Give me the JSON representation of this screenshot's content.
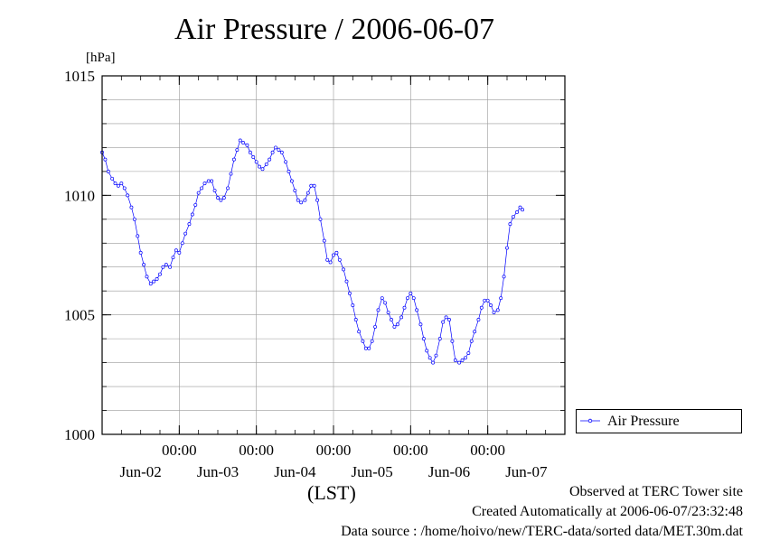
{
  "chart_data": {
    "type": "line",
    "title": "Air Pressure / 2006-06-07",
    "ylabel": "[hPa]",
    "xlabel": "(LST)",
    "ylim": [
      1000,
      1015
    ],
    "yticks": [
      "1000",
      "1005",
      "1010",
      "1015"
    ],
    "xlim_days": [
      0,
      6
    ],
    "xticks": [
      {
        "time": "00:00",
        "date": "Jun-02"
      },
      {
        "time": "00:00",
        "date": "Jun-03"
      },
      {
        "time": "00:00",
        "date": "Jun-04"
      },
      {
        "time": "00:00",
        "date": "Jun-05"
      },
      {
        "time": "00:00",
        "date": "Jun-06"
      },
      {
        "time": "",
        "date": "Jun-07"
      }
    ],
    "grid": true,
    "legend_position": "lower-right outside",
    "series": [
      {
        "name": "Air Pressure",
        "color": "#0000ff",
        "points": [
          [
            0.0,
            1011.8
          ],
          [
            0.04,
            1011.5
          ],
          [
            0.08,
            1011.0
          ],
          [
            0.13,
            1010.7
          ],
          [
            0.17,
            1010.5
          ],
          [
            0.21,
            1010.4
          ],
          [
            0.25,
            1010.5
          ],
          [
            0.29,
            1010.3
          ],
          [
            0.33,
            1010.0
          ],
          [
            0.38,
            1009.5
          ],
          [
            0.42,
            1009.0
          ],
          [
            0.46,
            1008.3
          ],
          [
            0.5,
            1007.6
          ],
          [
            0.54,
            1007.1
          ],
          [
            0.58,
            1006.6
          ],
          [
            0.63,
            1006.3
          ],
          [
            0.67,
            1006.4
          ],
          [
            0.71,
            1006.5
          ],
          [
            0.75,
            1006.7
          ],
          [
            0.79,
            1007.0
          ],
          [
            0.83,
            1007.1
          ],
          [
            0.88,
            1007.0
          ],
          [
            0.92,
            1007.4
          ],
          [
            0.96,
            1007.7
          ],
          [
            1.0,
            1007.6
          ],
          [
            1.04,
            1008.0
          ],
          [
            1.08,
            1008.4
          ],
          [
            1.13,
            1008.8
          ],
          [
            1.17,
            1009.2
          ],
          [
            1.21,
            1009.6
          ],
          [
            1.25,
            1010.1
          ],
          [
            1.29,
            1010.3
          ],
          [
            1.33,
            1010.5
          ],
          [
            1.38,
            1010.6
          ],
          [
            1.42,
            1010.6
          ],
          [
            1.46,
            1010.2
          ],
          [
            1.5,
            1009.9
          ],
          [
            1.54,
            1009.8
          ],
          [
            1.58,
            1009.9
          ],
          [
            1.63,
            1010.3
          ],
          [
            1.67,
            1010.9
          ],
          [
            1.71,
            1011.5
          ],
          [
            1.75,
            1011.9
          ],
          [
            1.79,
            1012.3
          ],
          [
            1.83,
            1012.2
          ],
          [
            1.88,
            1012.1
          ],
          [
            1.92,
            1011.8
          ],
          [
            1.96,
            1011.6
          ],
          [
            2.0,
            1011.4
          ],
          [
            2.04,
            1011.2
          ],
          [
            2.08,
            1011.1
          ],
          [
            2.13,
            1011.3
          ],
          [
            2.17,
            1011.5
          ],
          [
            2.21,
            1011.8
          ],
          [
            2.25,
            1012.0
          ],
          [
            2.29,
            1011.9
          ],
          [
            2.33,
            1011.8
          ],
          [
            2.38,
            1011.4
          ],
          [
            2.42,
            1011.0
          ],
          [
            2.46,
            1010.6
          ],
          [
            2.5,
            1010.2
          ],
          [
            2.54,
            1009.8
          ],
          [
            2.58,
            1009.7
          ],
          [
            2.63,
            1009.8
          ],
          [
            2.67,
            1010.1
          ],
          [
            2.71,
            1010.4
          ],
          [
            2.75,
            1010.4
          ],
          [
            2.79,
            1009.8
          ],
          [
            2.83,
            1009.0
          ],
          [
            2.88,
            1008.1
          ],
          [
            2.92,
            1007.3
          ],
          [
            2.96,
            1007.2
          ],
          [
            3.0,
            1007.5
          ],
          [
            3.04,
            1007.6
          ],
          [
            3.08,
            1007.3
          ],
          [
            3.13,
            1006.9
          ],
          [
            3.17,
            1006.4
          ],
          [
            3.21,
            1005.9
          ],
          [
            3.25,
            1005.4
          ],
          [
            3.29,
            1004.8
          ],
          [
            3.33,
            1004.3
          ],
          [
            3.38,
            1003.9
          ],
          [
            3.42,
            1003.6
          ],
          [
            3.46,
            1003.6
          ],
          [
            3.5,
            1003.9
          ],
          [
            3.54,
            1004.5
          ],
          [
            3.58,
            1005.2
          ],
          [
            3.63,
            1005.7
          ],
          [
            3.67,
            1005.5
          ],
          [
            3.71,
            1005.1
          ],
          [
            3.75,
            1004.8
          ],
          [
            3.79,
            1004.5
          ],
          [
            3.83,
            1004.6
          ],
          [
            3.88,
            1004.9
          ],
          [
            3.92,
            1005.3
          ],
          [
            3.96,
            1005.7
          ],
          [
            4.0,
            1005.9
          ],
          [
            4.04,
            1005.7
          ],
          [
            4.08,
            1005.2
          ],
          [
            4.13,
            1004.6
          ],
          [
            4.17,
            1004.0
          ],
          [
            4.21,
            1003.5
          ],
          [
            4.25,
            1003.2
          ],
          [
            4.29,
            1003.0
          ],
          [
            4.33,
            1003.3
          ],
          [
            4.38,
            1004.0
          ],
          [
            4.42,
            1004.7
          ],
          [
            4.46,
            1004.9
          ],
          [
            4.5,
            1004.8
          ],
          [
            4.54,
            1003.9
          ],
          [
            4.58,
            1003.1
          ],
          [
            4.63,
            1003.0
          ],
          [
            4.67,
            1003.1
          ],
          [
            4.71,
            1003.2
          ],
          [
            4.75,
            1003.4
          ],
          [
            4.79,
            1003.9
          ],
          [
            4.83,
            1004.3
          ],
          [
            4.88,
            1004.8
          ],
          [
            4.92,
            1005.3
          ],
          [
            4.96,
            1005.6
          ],
          [
            5.0,
            1005.6
          ],
          [
            5.04,
            1005.4
          ],
          [
            5.08,
            1005.1
          ],
          [
            5.13,
            1005.2
          ],
          [
            5.17,
            1005.7
          ],
          [
            5.21,
            1006.6
          ],
          [
            5.25,
            1007.8
          ],
          [
            5.29,
            1008.8
          ],
          [
            5.33,
            1009.1
          ],
          [
            5.38,
            1009.3
          ],
          [
            5.42,
            1009.5
          ],
          [
            5.45,
            1009.4
          ]
        ]
      }
    ]
  },
  "footer": {
    "line1": "Observed at TERC Tower site",
    "line2": "Created Automatically at 2006-06-07/23:32:48",
    "line3": "Data source : /home/hoivo/new/TERC-data/sorted  data/MET.30m.dat"
  }
}
